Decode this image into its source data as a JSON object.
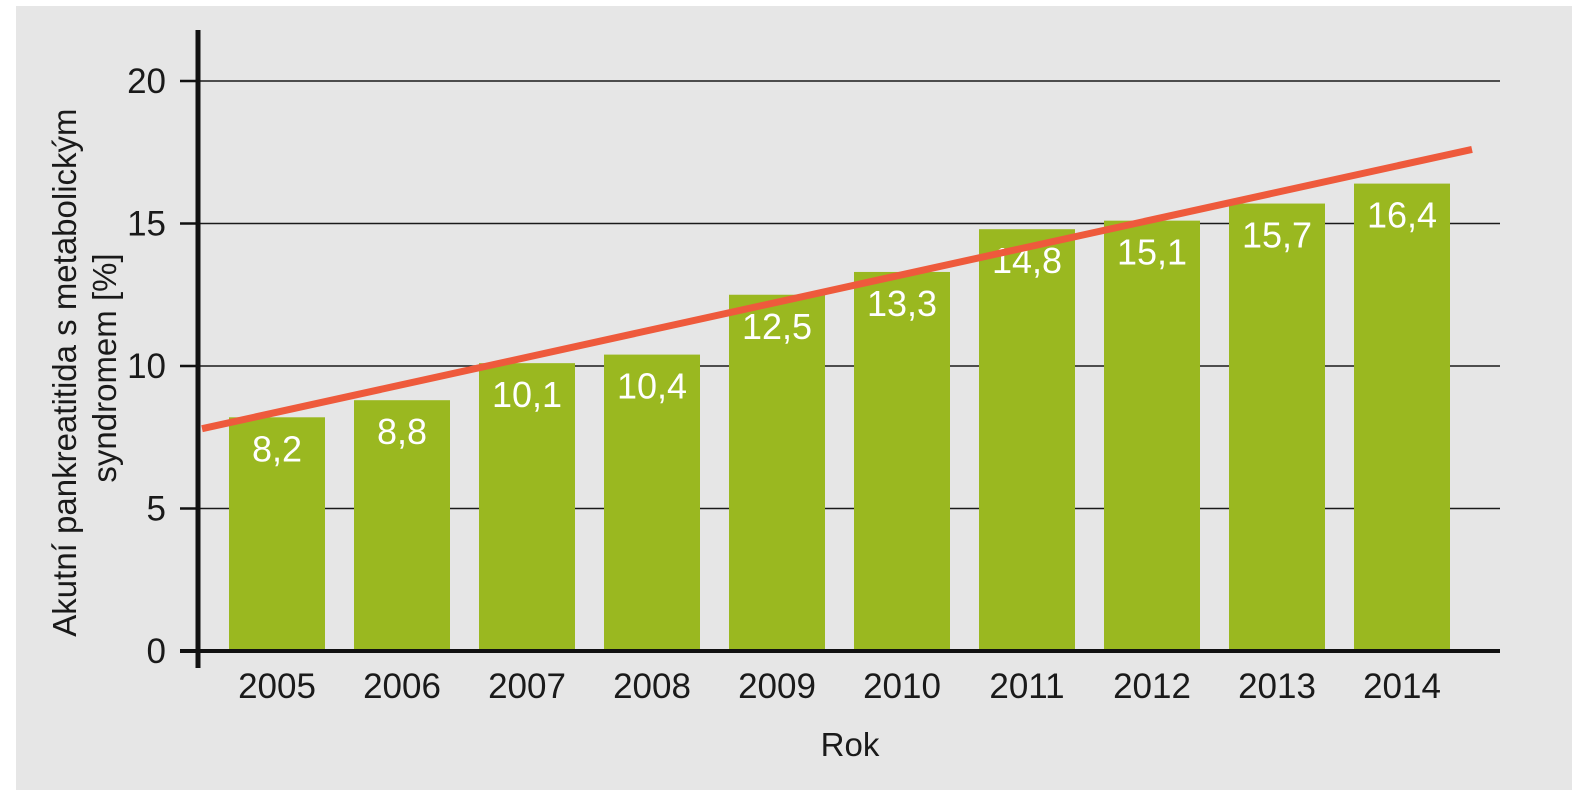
{
  "chart_data": {
    "type": "bar",
    "title": "",
    "xlabel": "Rok",
    "ylabel_lines": [
      "Akutní pankreatitida s metabolickým",
      "syndromem [%]"
    ],
    "categories": [
      "2005",
      "2006",
      "2007",
      "2008",
      "2009",
      "2010",
      "2011",
      "2012",
      "2013",
      "2014"
    ],
    "values": [
      8.2,
      8.8,
      10.1,
      10.4,
      12.5,
      13.3,
      14.8,
      15.1,
      15.7,
      16.4
    ],
    "value_labels": [
      "8,2",
      "8,8",
      "10,1",
      "10,4",
      "12,5",
      "13,3",
      "14,8",
      "15,1",
      "15,7",
      "16,4"
    ],
    "ylim": [
      0,
      20
    ],
    "yticks": [
      0,
      5,
      10,
      15,
      20
    ],
    "grid": true,
    "trendline": {
      "start": 7.8,
      "end": 17.6
    },
    "colors": {
      "bar": "#9ab820",
      "trend": "#ee5a3c",
      "grid": "#1a1a1a",
      "background": "#e6e6e6"
    }
  }
}
